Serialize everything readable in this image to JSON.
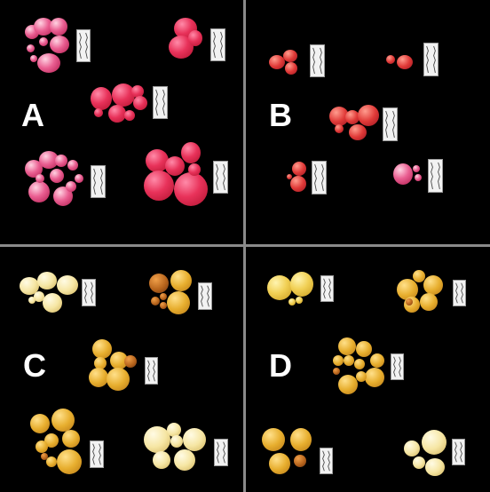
{
  "panels": {
    "a": {
      "label": "A",
      "tuber_color": "#e8325a"
    },
    "b": {
      "label": "B",
      "tuber_color": "#e03a38"
    },
    "c": {
      "label": "C",
      "tuber_color": "#f1d055"
    },
    "d": {
      "label": "D",
      "tuber_color": "#e7ae2e"
    }
  },
  "colors": {
    "background": "#000000",
    "divider": "#8a8a8a",
    "label": "#ffffff",
    "ruler": "#f2f2f2"
  }
}
